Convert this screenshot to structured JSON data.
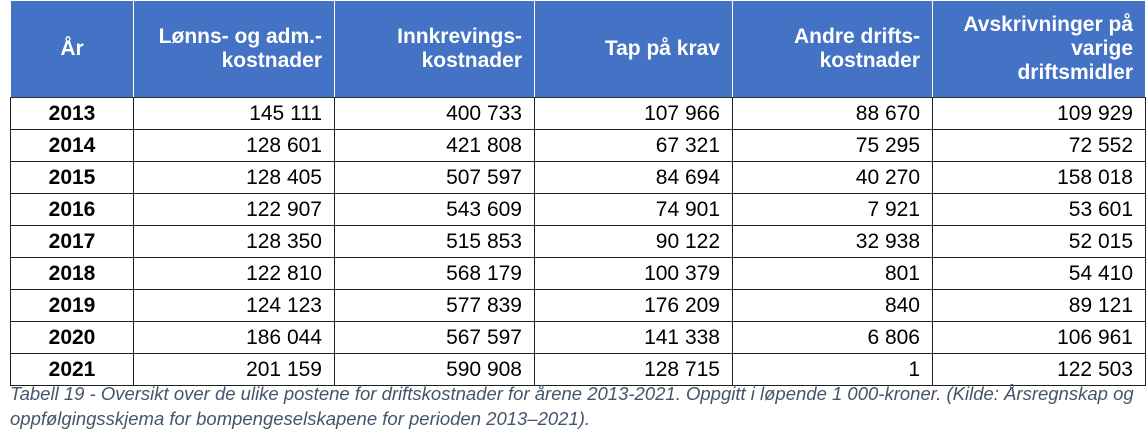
{
  "table": {
    "headers": [
      "År",
      "Lønns- og adm.-kostnader",
      "Innkrevings-kostnader",
      "Tap på krav",
      "Andre drifts-kostnader",
      "Avskrivninger på varige driftsmidler"
    ],
    "rows": [
      [
        "2013",
        "145 111",
        "400 733",
        "107 966",
        "88 670",
        "109 929"
      ],
      [
        "2014",
        "128 601",
        "421 808",
        "67 321",
        "75 295",
        "72 552"
      ],
      [
        "2015",
        "128 405",
        "507 597",
        "84 694",
        "40 270",
        "158 018"
      ],
      [
        "2016",
        "122 907",
        "543 609",
        "74 901",
        "7 921",
        "53 601"
      ],
      [
        "2017",
        "128 350",
        "515 853",
        "90 122",
        "32 938",
        "52 015"
      ],
      [
        "2018",
        "122 810",
        "568 179",
        "100 379",
        "801",
        "54 410"
      ],
      [
        "2019",
        "124 123",
        "577 839",
        "176 209",
        "840",
        "89 121"
      ],
      [
        "2020",
        "186 044",
        "567 597",
        "141 338",
        "6 806",
        "106 961"
      ],
      [
        "2021",
        "201 159",
        "590 908",
        "128 715",
        "1",
        "122 503"
      ]
    ]
  },
  "caption": "Tabell 19 - Oversikt over de ulike postene for driftskostnader for årene 2013-2021. Oppgitt i løpende 1 000-kroner. (Kilde: Årsregnskap og oppfølgingsskjema for bompengeselskapene for perioden 2013–2021).",
  "colors": {
    "header_bg": "#4472c4",
    "header_text": "#ffffff",
    "caption_text": "#44546a"
  }
}
